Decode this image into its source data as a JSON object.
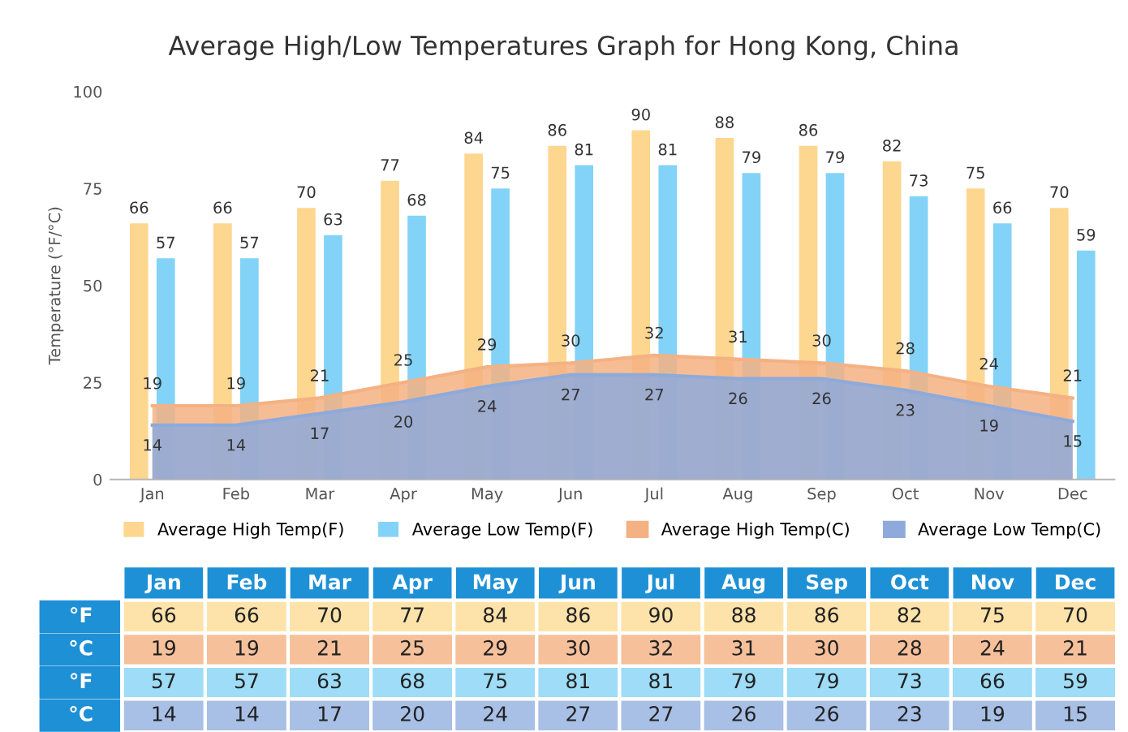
{
  "chart_data": [
    {
      "type": "bar",
      "title": "Average High/Low Temperatures Graph for Hong Kong, China",
      "ylabel": "Temperature (°F/°C)",
      "categories": [
        "Jan",
        "Feb",
        "Mar",
        "Apr",
        "May",
        "Jun",
        "Jul",
        "Aug",
        "Sep",
        "Oct",
        "Nov",
        "Dec"
      ],
      "series": [
        {
          "name": "Average High Temp(F)",
          "color": "#fdd68f",
          "values": [
            66,
            66,
            70,
            77,
            84,
            86,
            90,
            88,
            86,
            82,
            75,
            70
          ]
        },
        {
          "name": "Average Low Temp(F)",
          "color": "#82d3f7",
          "values": [
            57,
            57,
            63,
            68,
            75,
            81,
            81,
            79,
            79,
            73,
            66,
            59
          ]
        },
        {
          "name": "Average High Temp(C)",
          "type": "area",
          "color": "#f4b183",
          "values": [
            19,
            19,
            21,
            25,
            29,
            30,
            32,
            31,
            30,
            28,
            24,
            21
          ]
        },
        {
          "name": "Average Low Temp(C)",
          "type": "area",
          "color": "#8eaadb",
          "values": [
            14,
            14,
            17,
            20,
            24,
            27,
            27,
            26,
            26,
            23,
            19,
            15
          ]
        }
      ],
      "ylim": [
        0,
        100
      ],
      "yticks": [
        0,
        25,
        50,
        75,
        100
      ],
      "grid": false,
      "legend": "bottom",
      "data_labels": true
    },
    {
      "type": "heatmap",
      "categories": [
        "Jan",
        "Feb",
        "Mar",
        "Apr",
        "May",
        "Jun",
        "Jul",
        "Aug",
        "Sep",
        "Oct",
        "Nov",
        "Dec"
      ],
      "y_categories": [
        "°F",
        "°C",
        "°F",
        "°C"
      ],
      "cells": [
        [
          66,
          66,
          70,
          77,
          84,
          86,
          90,
          88,
          86,
          82,
          75,
          70
        ],
        [
          19,
          19,
          21,
          25,
          29,
          30,
          32,
          31,
          30,
          28,
          24,
          21
        ],
        [
          57,
          57,
          63,
          68,
          75,
          81,
          81,
          79,
          79,
          73,
          66,
          59
        ],
        [
          14,
          14,
          17,
          20,
          24,
          27,
          27,
          26,
          26,
          23,
          19,
          15
        ]
      ],
      "data_labels": true
    }
  ]
}
